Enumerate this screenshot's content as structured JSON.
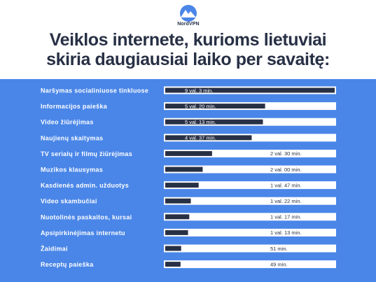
{
  "brand": {
    "name": "NordVPN",
    "icon": "nordvpn-mountain-icon"
  },
  "title_lines": [
    "Veiklos internete, kurioms lietuviai",
    "skiria daugiausiai laiko per savaitę:"
  ],
  "colors": {
    "background": "#4a86e8",
    "track": "#ffffff",
    "bar": "#283045",
    "label": "#ffffff",
    "title": "#283045"
  },
  "chart_data": {
    "type": "bar",
    "orientation": "horizontal",
    "title": "Veiklos internete, kurioms lietuviai skiria daugiausiai laiko per savaitę:",
    "unit": "min.",
    "categories": [
      "Naršymas socialiniuose tinkluose",
      "Informacijos paieška",
      "Video žiūrėjimas",
      "Naujienų skaitymas",
      "TV serialų ir filmų žiūrėjimas",
      "Muzikos klausymas",
      "Kasdienės admin. užduotys",
      "Video skambučiai",
      "Nuotolinės paskaitos, kursai",
      "Apsipirkinėjimas internetu",
      "Žaidimai",
      "Receptų paieška"
    ],
    "values": [
      543,
      320,
      313,
      277,
      150,
      120,
      107,
      82,
      77,
      73,
      51,
      49
    ],
    "value_labels": [
      "9 val. 3 min.",
      "5 val. 20 min.",
      "5 val. 13 min.",
      "4 val. 37 min.",
      "2 val. 30 min.",
      "2 val. 00 min.",
      "1 val. 47 min.",
      "1 val. 22 min.",
      "1 val. 17 min.",
      "1 val. 13 min.",
      "51 min.",
      "49 min."
    ],
    "xlim": [
      0,
      543
    ],
    "legend": "none",
    "grid": false
  }
}
